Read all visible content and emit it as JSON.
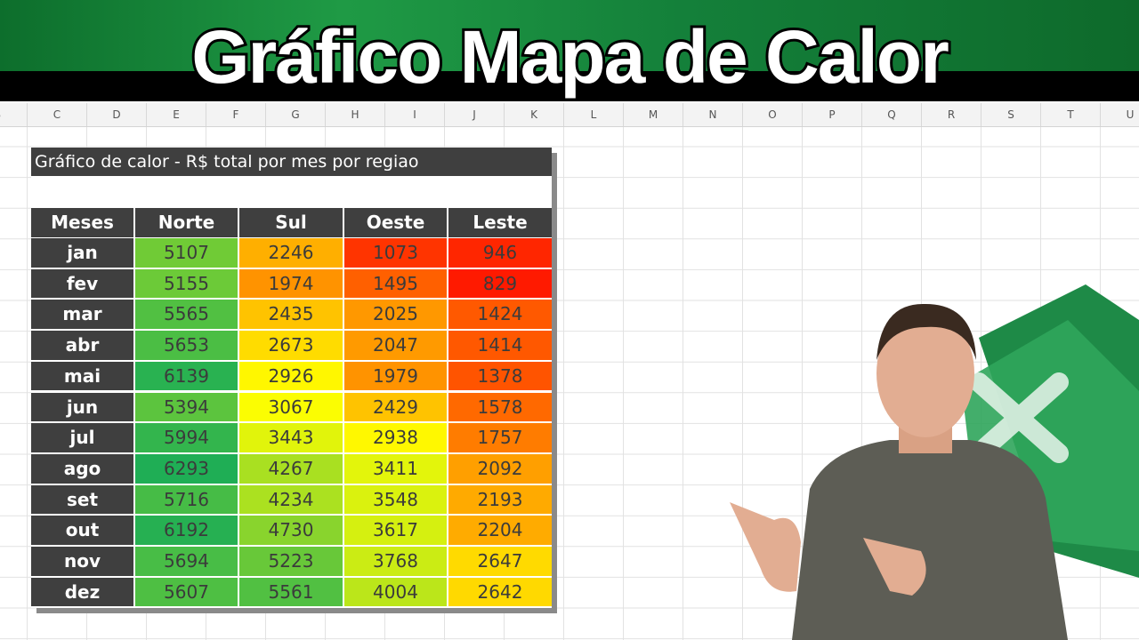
{
  "header": {
    "title": "Gráfico Mapa de Calor"
  },
  "spreadsheet": {
    "columns": [
      "B",
      "C",
      "D",
      "E",
      "F",
      "G",
      "H",
      "I",
      "J",
      "K",
      "L",
      "M",
      "N",
      "O",
      "P",
      "Q",
      "R",
      "S",
      "T",
      "U"
    ]
  },
  "table": {
    "title": "Gráfico de calor - R$ total por mes por regiao",
    "columns": [
      "Meses",
      "Norte",
      "Sul",
      "Oeste",
      "Leste"
    ],
    "rows": [
      [
        "jan",
        5107,
        2246,
        1073,
        946
      ],
      [
        "fev",
        5155,
        1974,
        1495,
        829
      ],
      [
        "mar",
        5565,
        2435,
        2025,
        1424
      ],
      [
        "abr",
        5653,
        2673,
        2047,
        1414
      ],
      [
        "mai",
        6139,
        2926,
        1979,
        1378
      ],
      [
        "jun",
        5394,
        3067,
        2429,
        1578
      ],
      [
        "jul",
        5994,
        3443,
        2938,
        1757
      ],
      [
        "ago",
        6293,
        4267,
        3411,
        2092
      ],
      [
        "set",
        5716,
        4234,
        3548,
        2193
      ],
      [
        "out",
        6192,
        4730,
        3617,
        2204
      ],
      [
        "nov",
        5694,
        5223,
        3768,
        2647
      ],
      [
        "dez",
        5607,
        5561,
        4004,
        2642
      ]
    ],
    "color_scale": [
      "#ff1a00",
      "#ffff00",
      "#1fae55"
    ]
  }
}
